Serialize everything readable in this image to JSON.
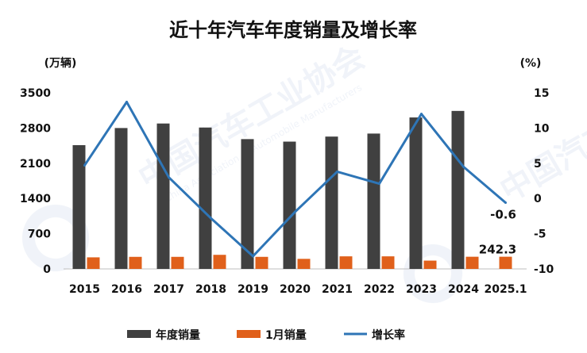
{
  "chart_data": {
    "type": "bar",
    "title": "近十年汽车年度销量及增长率",
    "categories": [
      "2015",
      "2016",
      "2017",
      "2018",
      "2019",
      "2020",
      "2021",
      "2022",
      "2023",
      "2024",
      "2025.1"
    ],
    "left_unit": "(万辆)",
    "right_unit": "(%)",
    "ylim_left": [
      0,
      3500
    ],
    "yticks_left": [
      "0",
      "700",
      "1400",
      "2100",
      "2800",
      "3500"
    ],
    "ylim_right": [
      -10,
      15
    ],
    "yticks_right": [
      "-10",
      "-5",
      "0",
      "5",
      "10",
      "15"
    ],
    "series": [
      {
        "name": "年度销量",
        "type": "bar",
        "axis": "left",
        "color": "#404040",
        "values": [
          2460,
          2800,
          2890,
          2810,
          2580,
          2530,
          2630,
          2690,
          3010,
          3140,
          null
        ]
      },
      {
        "name": "1月销量",
        "type": "bar",
        "axis": "left",
        "color": "#e0601b",
        "values": [
          230,
          240,
          240,
          280,
          240,
          200,
          250,
          250,
          165,
          242,
          242.3
        ]
      },
      {
        "name": "增长率",
        "type": "line",
        "axis": "right",
        "color": "#2e75b6",
        "values": [
          4.7,
          13.7,
          3.0,
          -2.8,
          -8.2,
          -1.9,
          3.8,
          2.1,
          12.0,
          4.5,
          -0.6
        ]
      }
    ],
    "annotations": [
      {
        "text": "-0.6",
        "category": "2025.1",
        "series": "增长率"
      },
      {
        "text": "242.3",
        "category": "2025.1",
        "series": "1月销量"
      }
    ],
    "legend_position": "bottom",
    "grid": false
  },
  "watermark": {
    "text_cn": "中国汽车工业协会",
    "text_en": "China Association of Automobile Manufacturers"
  }
}
